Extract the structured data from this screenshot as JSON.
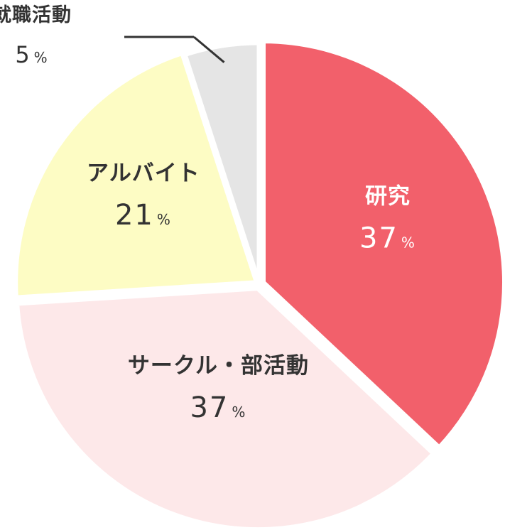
{
  "chart_data": {
    "type": "pie",
    "slices": [
      {
        "label": "研究",
        "value": 37,
        "value_text": "37",
        "unit": "%",
        "color": "#f2606b",
        "text_color": "#ffffff"
      },
      {
        "label": "サークル・部活動",
        "value": 37,
        "value_text": "37",
        "unit": "%",
        "color": "#fde8e9",
        "text_color": "#333333"
      },
      {
        "label": "アルバイト",
        "value": 21,
        "value_text": "21",
        "unit": "%",
        "color": "#fdfcc4",
        "text_color": "#333333"
      },
      {
        "label": "就職活動",
        "value": 5,
        "value_text": "5",
        "unit": "%",
        "color": "#e5e5e5",
        "text_color": "#333333"
      }
    ],
    "start_angle": "12 o'clock",
    "direction": "clockwise",
    "legend": "none",
    "labels": "inside slices; small slice labelled outside with leader line"
  }
}
